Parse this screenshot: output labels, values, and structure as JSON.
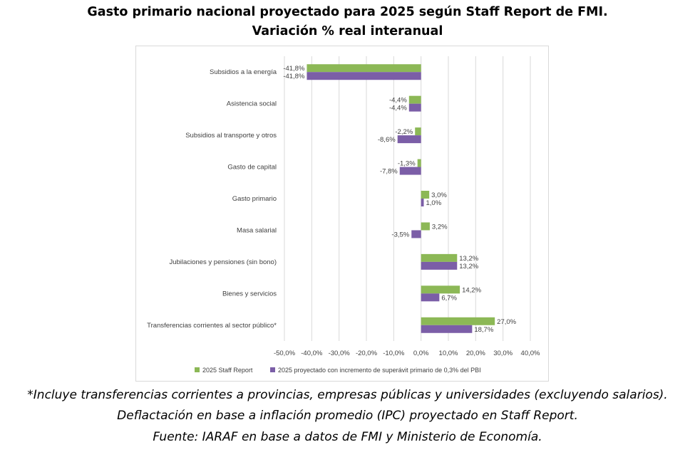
{
  "header": {
    "title_line1": "Gasto primario nacional proyectado para 2025 según Staff Report de FMI.",
    "title_line2": "Variación % real interanual"
  },
  "footer": {
    "note1": "*Incluye transferencias corrientes a provincias, empresas públicas y universidades (excluyendo salarios).",
    "note2": "Deflactación en base a inflación promedio (IPC) proyectado en Staff Report.",
    "note3": "Fuente: IARAF en base a datos de FMI y Ministerio de Economía."
  },
  "chart_data": {
    "type": "bar",
    "orientation": "horizontal",
    "categories": [
      "Subsidios a la energía",
      "Asistencia social",
      "Subsidios al transporte y otros",
      "Gasto de capital",
      "Gasto primario",
      "Masa salarial",
      "Jubilaciones y pensiones (sin bono)",
      "Bienes y servicios",
      "Transferencias corrientes al sector público*"
    ],
    "series": [
      {
        "name": "2025 Staff Report",
        "color": "#8cb856",
        "values": [
          -41.8,
          -4.4,
          -2.2,
          -1.3,
          3.0,
          3.2,
          13.2,
          14.2,
          27.0
        ],
        "labels": [
          "-41,8%",
          "-4,4%",
          "-2,2%",
          "-1,3%",
          "3,0%",
          "3,2%",
          "13,2%",
          "14,2%",
          "27,0%"
        ]
      },
      {
        "name": "2025 proyectado con incremento de superávit primario de 0,3% del PBI",
        "color": "#7b5ea7",
        "values": [
          -41.8,
          -4.4,
          -8.6,
          -7.8,
          1.0,
          -3.5,
          13.2,
          6.7,
          18.7
        ],
        "labels": [
          "-41,8%",
          "-4,4%",
          "-8,6%",
          "-7,8%",
          "1,0%",
          "-3,5%",
          "13,2%",
          "6,7%",
          "18,7%"
        ]
      }
    ],
    "xlim": [
      -50,
      40
    ],
    "xticks": [
      -50,
      -40,
      -30,
      -20,
      -10,
      0,
      10,
      20,
      30,
      40
    ],
    "xtick_labels": [
      "-50,0%",
      "-40,0%",
      "-30,0%",
      "-20,0%",
      "-10,0%",
      "0,0%",
      "10,0%",
      "20,0%",
      "30,0%",
      "40,0%"
    ],
    "grid": true,
    "legend_position": "bottom"
  }
}
